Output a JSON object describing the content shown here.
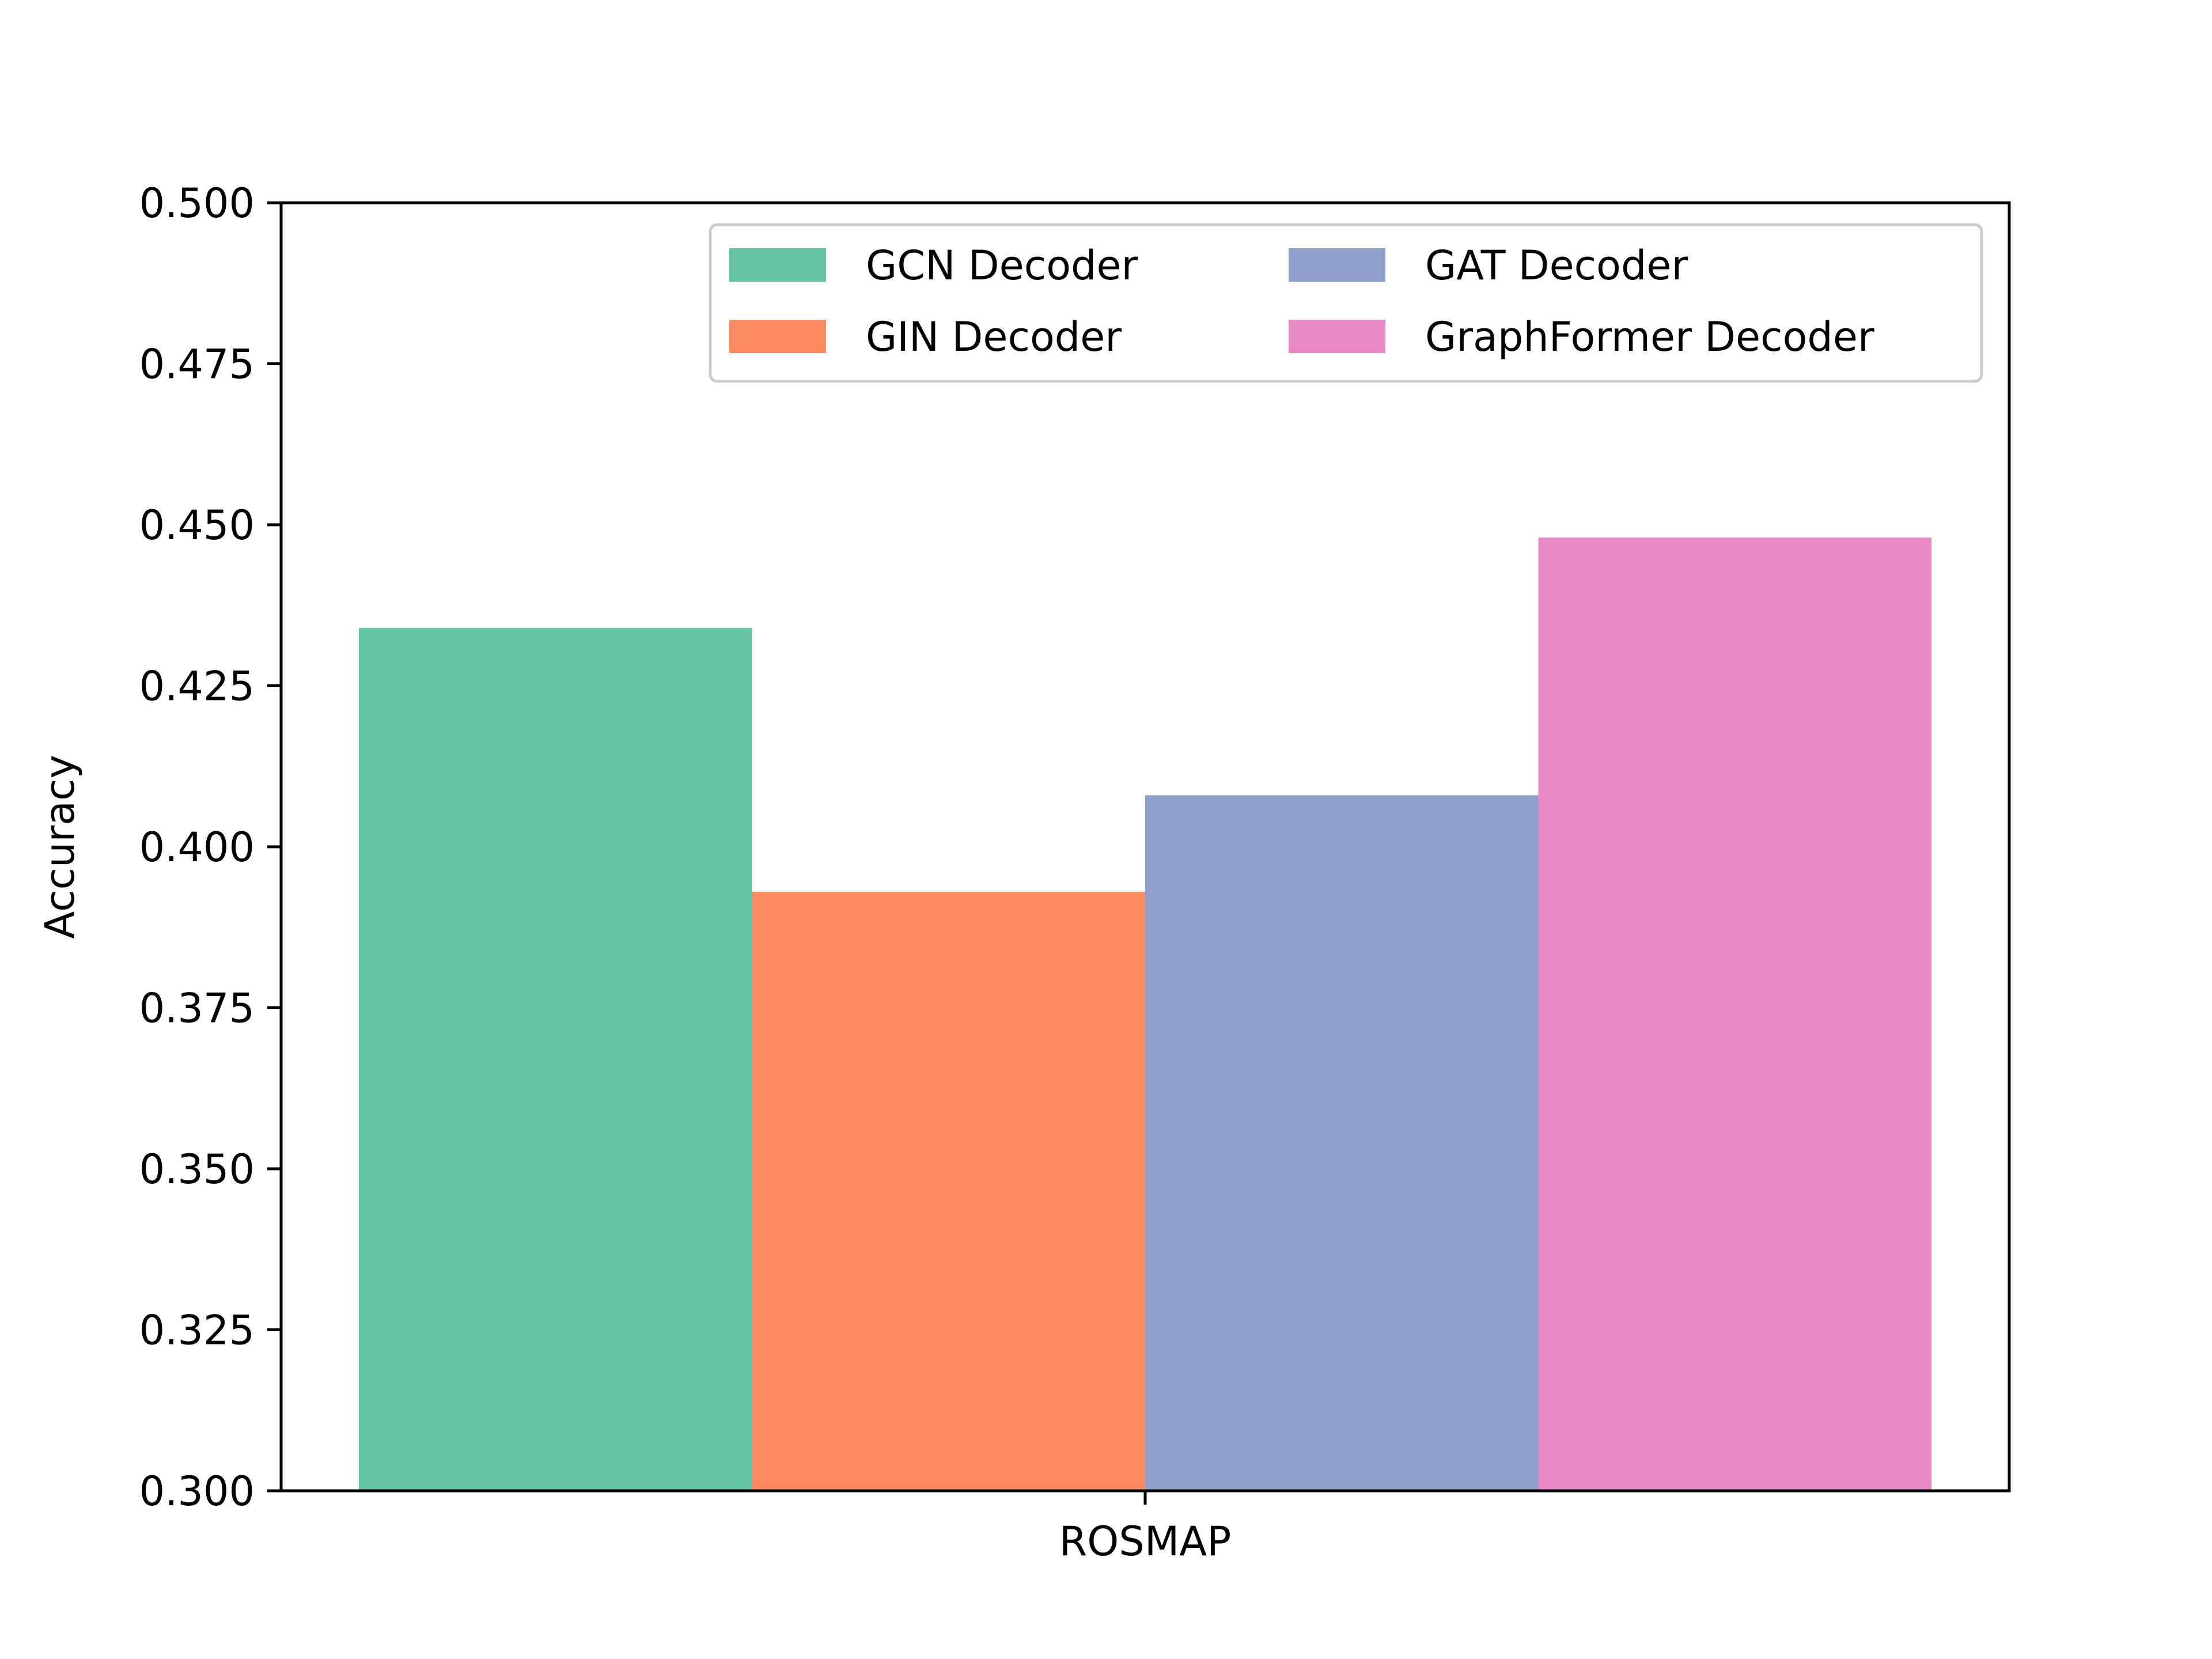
{
  "chart_data": {
    "type": "bar",
    "title": "",
    "xlabel": "",
    "ylabel": "Accuracy",
    "categories": [
      "ROSMAP"
    ],
    "ylim": [
      0.3,
      0.5
    ],
    "yticks": [
      "0.300",
      "0.325",
      "0.350",
      "0.375",
      "0.400",
      "0.425",
      "0.450",
      "0.475",
      "0.500"
    ],
    "grid": false,
    "legend_position": "top-right",
    "legend_columns": 2,
    "series": [
      {
        "name": "GCN Decoder",
        "values": [
          0.434
        ],
        "color": "#66c2a5"
      },
      {
        "name": "GIN Decoder",
        "values": [
          0.393
        ],
        "color": "#fc8d62"
      },
      {
        "name": "GAT Decoder",
        "values": [
          0.408
        ],
        "color": "#8da0cb"
      },
      {
        "name": "GraphFormer Decoder",
        "values": [
          0.448
        ],
        "color": "#e78ac3"
      }
    ]
  }
}
